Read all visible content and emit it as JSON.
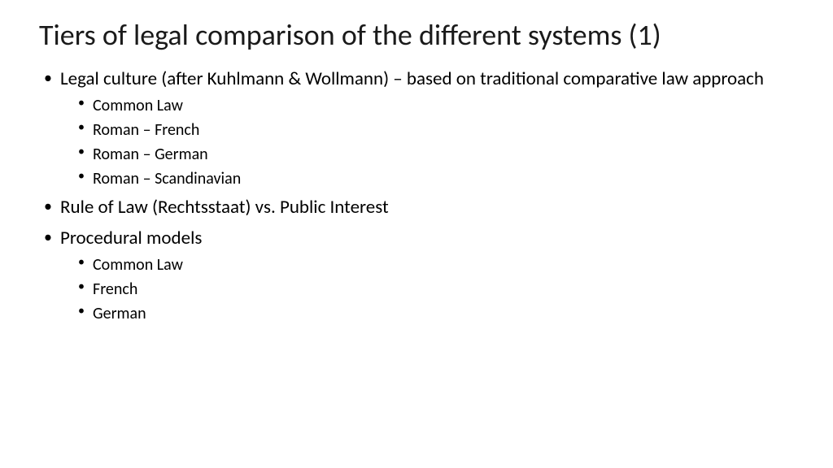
{
  "slide": {
    "title": "Tiers of legal comparison of the different systems (1)",
    "bullets": [
      {
        "text": "Legal culture (after Kuhlmann & Wollmann) – based on traditional comparative law approach",
        "children": [
          "Common Law",
          "Roman – French",
          "Roman – German",
          "Roman – Scandinavian"
        ]
      },
      {
        "text": "Rule of Law (Rechtsstaat) vs. Public Interest",
        "children": []
      },
      {
        "text": "Procedural models",
        "children": [
          "Common Law",
          "French",
          "German"
        ]
      }
    ]
  },
  "style": {
    "background_color": "#ffffff",
    "text_color": "#000000",
    "title_fontsize": 36,
    "body_fontsize": 23,
    "sub_fontsize": 20,
    "font_family": "Calibri"
  }
}
